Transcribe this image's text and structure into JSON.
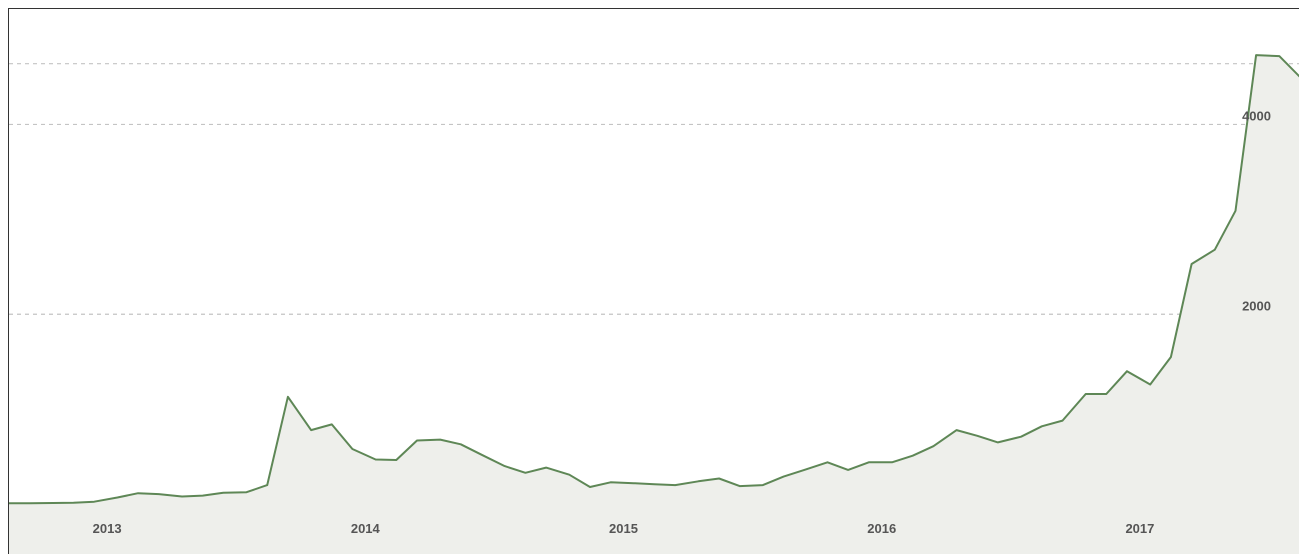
{
  "chart_data": {
    "type": "area",
    "title": "",
    "xlabel": "",
    "ylabel": "",
    "x_tick_labels": [
      "2013",
      "2014",
      "2015",
      "2016",
      "2017"
    ],
    "y_tick_labels": [
      "2000",
      "4000"
    ],
    "y_ticks": [
      2000,
      4000
    ],
    "ylim": [
      -20,
      4900
    ],
    "xlim": [
      2012.62,
      2017.62
    ],
    "grid": true,
    "legend": "none",
    "colors": {
      "line": "#5e8756",
      "fill": "#eeefeb",
      "grid": "#c4c4c4",
      "text": "#555555"
    },
    "series": [
      {
        "x": [
          2012.62,
          2012.7,
          2012.79,
          2012.87,
          2012.95,
          2013.04,
          2013.12,
          2013.2,
          2013.29,
          2013.37,
          2013.45,
          2013.54,
          2013.62,
          2013.7,
          2013.79,
          2013.87,
          2013.95,
          2014.04,
          2014.12,
          2014.2,
          2014.29,
          2014.37,
          2014.45,
          2014.54,
          2014.62,
          2014.7,
          2014.79,
          2014.87,
          2014.95,
          2015.04,
          2015.12,
          2015.2,
          2015.29,
          2015.37,
          2015.45,
          2015.54,
          2015.62,
          2015.7,
          2015.79,
          2015.87,
          2015.95,
          2016.04,
          2016.12,
          2016.2,
          2016.29,
          2016.37,
          2016.45,
          2016.54,
          2016.62,
          2016.7,
          2016.79,
          2016.87,
          2016.95,
          2017.04,
          2017.12,
          2017.2,
          2017.29,
          2017.37,
          2017.45,
          2017.54,
          2017.62
        ],
        "values": [
          10,
          10,
          12,
          14,
          25,
          70,
          115,
          105,
          80,
          90,
          120,
          125,
          200,
          1130,
          780,
          840,
          580,
          470,
          465,
          670,
          680,
          630,
          520,
          400,
          330,
          385,
          310,
          180,
          230,
          220,
          210,
          200,
          240,
          270,
          190,
          200,
          290,
          360,
          440,
          360,
          440,
          440,
          510,
          610,
          780,
          720,
          650,
          710,
          820,
          880,
          1160,
          1160,
          1400,
          1260,
          1550,
          2530,
          2680,
          3090,
          4730,
          4720,
          4500
        ]
      }
    ]
  }
}
